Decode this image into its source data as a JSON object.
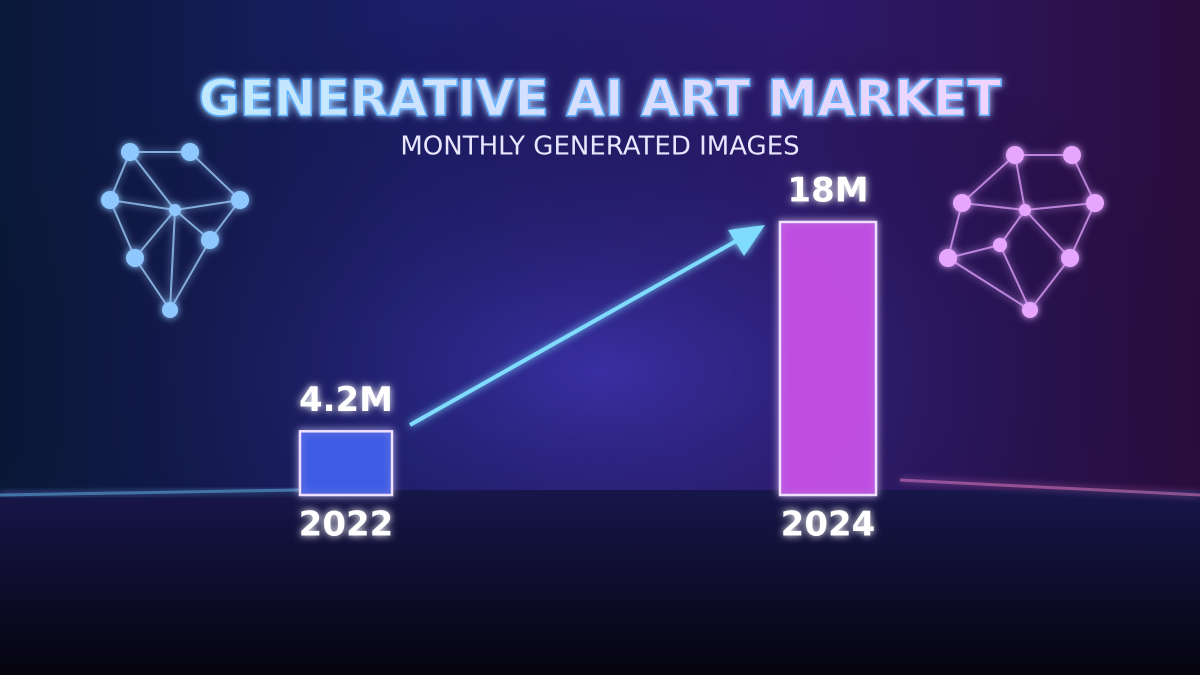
{
  "chart_data": {
    "type": "bar",
    "title": "GENERATIVE AI ART MARKET",
    "subtitle": "MONTHLY GENERATED IMAGES",
    "categories": [
      "2022",
      "2024"
    ],
    "values": [
      4.2,
      18
    ],
    "value_labels": [
      "4.2M",
      "18M"
    ],
    "colors": [
      "#3f5fe8",
      "#c44fe6"
    ]
  }
}
